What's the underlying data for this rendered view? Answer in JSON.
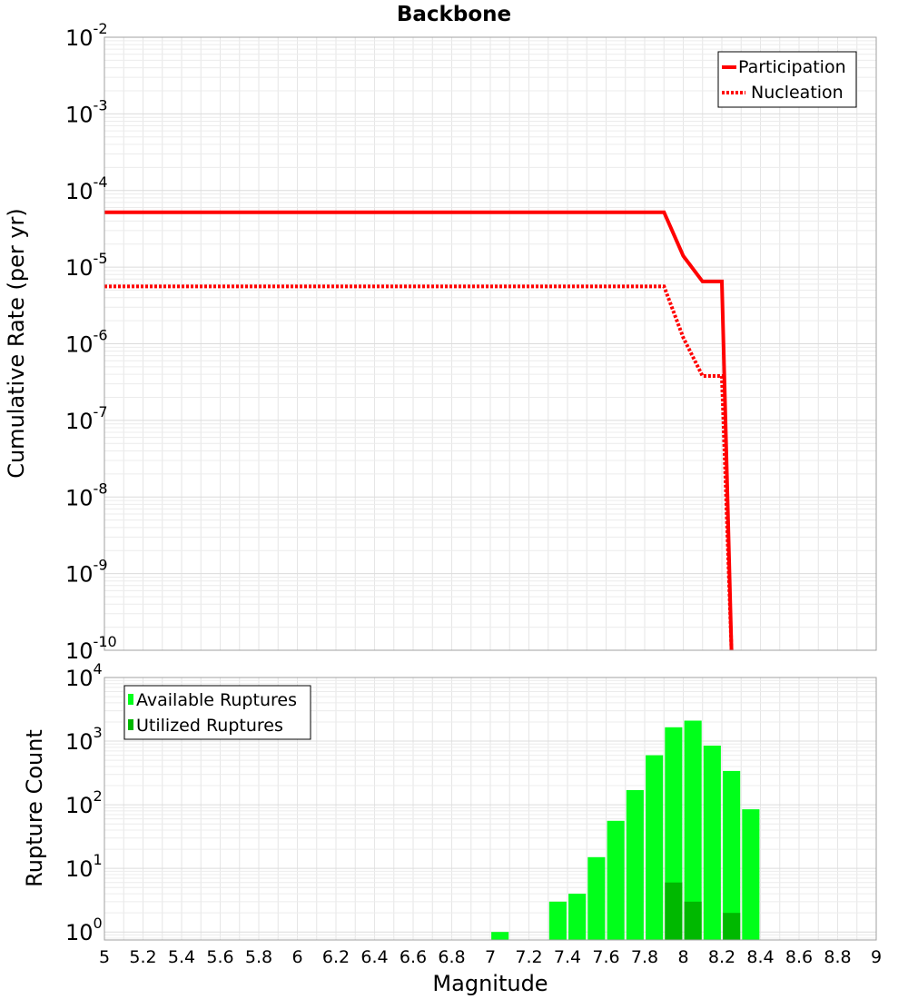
{
  "chart_data": [
    {
      "type": "line",
      "title": "Backbone",
      "xlabel": "",
      "ylabel": "Cumulative Rate (per yr)",
      "xlim": [
        5,
        9
      ],
      "ylim": [
        1e-10,
        0.01
      ],
      "yscale": "log",
      "grid": true,
      "legend_position": "top-right",
      "y_ticks": [
        {
          "base": "10",
          "exp": "-2"
        },
        {
          "base": "10",
          "exp": "-3"
        },
        {
          "base": "10",
          "exp": "-4"
        },
        {
          "base": "10",
          "exp": "-5"
        },
        {
          "base": "10",
          "exp": "-6"
        },
        {
          "base": "10",
          "exp": "-7"
        },
        {
          "base": "10",
          "exp": "-8"
        },
        {
          "base": "10",
          "exp": "-9"
        },
        {
          "base": "10",
          "exp": "-10"
        }
      ],
      "series": [
        {
          "name": "Participation",
          "color": "#ff0000",
          "style": "solid",
          "x": [
            5.0,
            7.9,
            8.0,
            8.1,
            8.2,
            8.25
          ],
          "y": [
            5.2e-05,
            5.2e-05,
            1.4e-05,
            6.5e-06,
            6.5e-06,
            1e-10
          ]
        },
        {
          "name": "Nucleation",
          "color": "#ff0000",
          "style": "dotted",
          "x": [
            5.0,
            7.9,
            8.0,
            8.1,
            8.2,
            8.25
          ],
          "y": [
            5.6e-06,
            5.6e-06,
            1.2e-06,
            3.8e-07,
            3.8e-07,
            1e-10
          ]
        }
      ]
    },
    {
      "type": "bar",
      "title": "",
      "xlabel": "Magnitude",
      "ylabel": "Rupture Count",
      "xlim": [
        5,
        9
      ],
      "ylim": [
        0.75,
        10000
      ],
      "yscale": "log",
      "grid": true,
      "legend_position": "top-left",
      "bar_width": 0.09,
      "x_ticks": [
        "5",
        "5.2",
        "5.4",
        "5.6",
        "5.8",
        "6",
        "6.2",
        "6.4",
        "6.6",
        "6.8",
        "7",
        "7.2",
        "7.4",
        "7.6",
        "7.8",
        "8",
        "8.2",
        "8.4",
        "8.6",
        "8.8",
        "9"
      ],
      "y_ticks": [
        {
          "base": "10",
          "exp": "4"
        },
        {
          "base": "10",
          "exp": "3"
        },
        {
          "base": "10",
          "exp": "2"
        },
        {
          "base": "10",
          "exp": "1"
        },
        {
          "base": "10",
          "exp": "0"
        }
      ],
      "series": [
        {
          "name": "Available Ruptures",
          "color": "#00ff1a",
          "x": [
            7.05,
            7.35,
            7.45,
            7.55,
            7.65,
            7.75,
            7.85,
            7.95,
            8.05,
            8.15,
            8.25,
            8.35
          ],
          "values": [
            1,
            3,
            4,
            15,
            56,
            170,
            600,
            1650,
            2100,
            850,
            340,
            85
          ]
        },
        {
          "name": "Utilized Ruptures",
          "color": "#00b800",
          "x": [
            7.95,
            8.05,
            8.25
          ],
          "values": [
            6,
            3,
            2
          ]
        }
      ]
    }
  ]
}
